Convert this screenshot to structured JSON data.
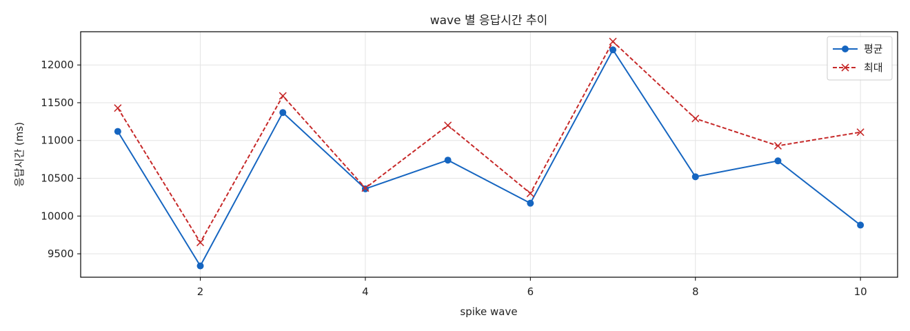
{
  "chart_data": {
    "type": "line",
    "title": "wave 별 응답시간 추이",
    "xlabel": "spike wave",
    "ylabel": "응답시간 (ms)",
    "x": [
      1,
      2,
      3,
      4,
      5,
      6,
      7,
      8,
      9,
      10
    ],
    "xticks": [
      2,
      4,
      6,
      8,
      10
    ],
    "yticks": [
      9500,
      10000,
      10500,
      11000,
      11500,
      12000
    ],
    "xlim": [
      0.55,
      10.45
    ],
    "ylim": [
      9190,
      12440
    ],
    "grid": true,
    "legend_position": "top-right",
    "series": [
      {
        "name": "평균",
        "color": "#1565c0",
        "marker": "circle",
        "line_style": "solid",
        "values": [
          11120,
          9340,
          11370,
          10360,
          10740,
          10170,
          12200,
          10520,
          10730,
          9880
        ]
      },
      {
        "name": "최대",
        "color": "#c62828",
        "marker": "x",
        "line_style": "dashed",
        "values": [
          11430,
          9650,
          11590,
          10370,
          11200,
          10300,
          12310,
          11290,
          10930,
          11110
        ]
      }
    ]
  }
}
